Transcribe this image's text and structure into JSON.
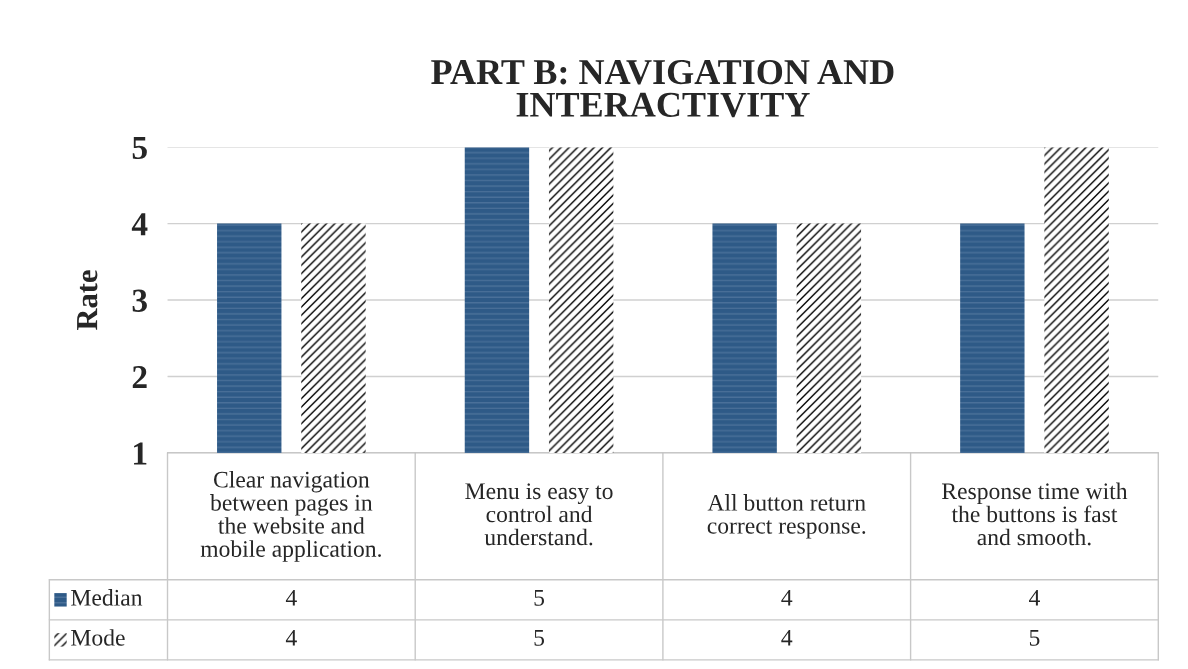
{
  "chart_data": {
    "type": "bar",
    "title": "PART B: NAVIGATION AND\nINTERACTIVITY",
    "ylabel": "Rate",
    "categories": [
      "Clear navigation\nbetween pages in\nthe website and\nmobile application.",
      "Menu is easy to\ncontrol and\nunderstand.",
      "All button return\ncorrect response.",
      "Response time with\nthe buttons is fast\nand smooth."
    ],
    "series": [
      {
        "name": "Median",
        "color": "#2e5a87",
        "values": [
          4,
          5,
          4,
          4
        ]
      },
      {
        "name": "Mode",
        "color": "#000000",
        "values": [
          4,
          5,
          4,
          5
        ]
      }
    ],
    "ylim": [
      1,
      5
    ],
    "yticks": [
      1,
      2,
      3,
      4,
      5
    ],
    "grid": "y",
    "data_labels": true,
    "legend": "bottom"
  }
}
